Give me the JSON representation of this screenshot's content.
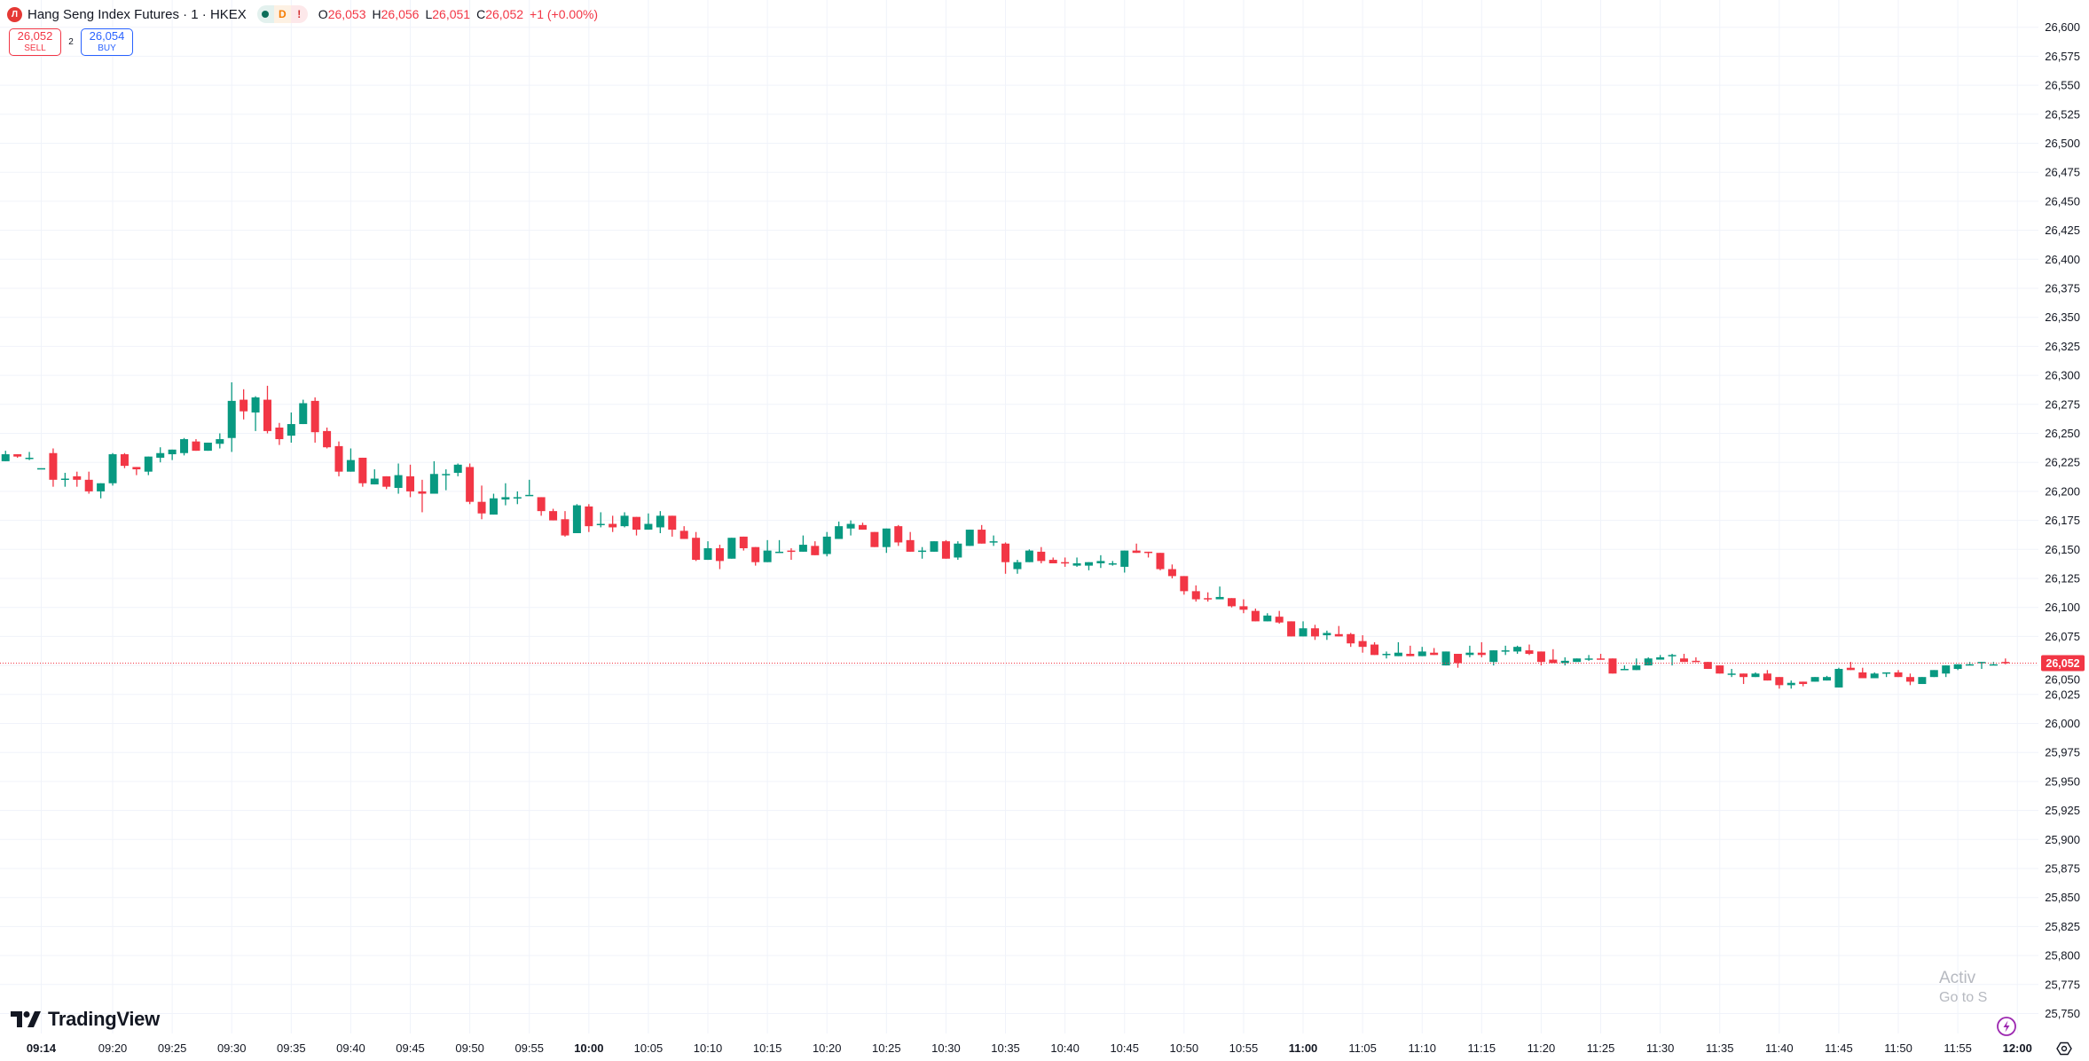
{
  "header": {
    "logo_letter": "Л",
    "title": "Hang Seng Index Futures · 1 · HKEX",
    "status_pills": [
      {
        "icon": "market-open-dot"
      },
      {
        "label": "D"
      },
      {
        "label": "!"
      }
    ],
    "ohlc": {
      "o_label": "O",
      "o": "26,053",
      "h_label": "H",
      "h": "26,056",
      "l_label": "L",
      "l": "26,051",
      "c_label": "C",
      "c": "26,052",
      "change": "+1 (+0.00%)"
    }
  },
  "trade": {
    "sell_price": "26,052",
    "sell_label": "SELL",
    "spread": "2",
    "buy_price": "26,054",
    "buy_label": "BUY"
  },
  "branding": {
    "name": "TradingView"
  },
  "watermark": {
    "line1": "Activ",
    "line2": "Go to S"
  },
  "colors": {
    "up": "#089981",
    "down": "#F23645",
    "grid": "#F0F3FA",
    "lightning": "#9C27B0"
  },
  "chart_data": {
    "type": "candlestick",
    "symbol": "Hang Seng Index Futures",
    "interval": "1",
    "start_time": "09:11",
    "interval_min": 1,
    "ylim": [
      25740,
      26612
    ],
    "grid": true,
    "last_price": 26052,
    "last_price_label": "26,052",
    "y_ticks": [
      "26,600",
      "26,575",
      "26,550",
      "26,525",
      "26,500",
      "26,475",
      "26,450",
      "26,425",
      "26,400",
      "26,375",
      "26,350",
      "26,325",
      "26,300",
      "26,275",
      "26,250",
      "26,225",
      "26,200",
      "26,175",
      "26,150",
      "26,125",
      "26,100",
      "26,075",
      "26,050",
      "26,025",
      "26,000",
      "25,975",
      "25,950",
      "25,925",
      "25,900",
      "25,875",
      "25,850",
      "25,825",
      "25,800",
      "25,775",
      "25,750"
    ],
    "x_ticks": [
      "09:14",
      "09:20",
      "09:25",
      "09:30",
      "09:35",
      "09:40",
      "09:45",
      "09:50",
      "09:55",
      "10:00",
      "10:05",
      "10:10",
      "10:15",
      "10:20",
      "10:25",
      "10:30",
      "10:35",
      "10:40",
      "10:45",
      "10:50",
      "10:55",
      "11:00",
      "11:05",
      "11:10",
      "11:15",
      "11:20",
      "11:25",
      "11:30",
      "11:35",
      "11:40",
      "11:45",
      "11:50",
      "11:55",
      "12:00"
    ],
    "x_ticks_bold": [
      "09:14",
      "10:00",
      "11:00",
      "12:00"
    ],
    "ohlc": [
      [
        26226,
        26235,
        26226,
        26232
      ],
      [
        26232,
        26232,
        26229,
        26230
      ],
      [
        26228,
        26234,
        26227,
        26229
      ],
      [
        26220,
        26220,
        26220,
        26220
      ],
      [
        26233,
        26237,
        26204,
        26210
      ],
      [
        26210,
        26216,
        26204,
        26211
      ],
      [
        26213,
        26217,
        26204,
        26210
      ],
      [
        26210,
        26217,
        26198,
        26200
      ],
      [
        26200,
        26207,
        26194,
        26207
      ],
      [
        26207,
        26233,
        26205,
        26232
      ],
      [
        26232,
        26233,
        26220,
        26222
      ],
      [
        26221,
        26221,
        26214,
        26219
      ],
      [
        26217,
        26230,
        26214,
        26230
      ],
      [
        26229,
        26238,
        26225,
        26233
      ],
      [
        26232,
        26236,
        26227,
        26236
      ],
      [
        26233,
        26246,
        26231,
        26245
      ],
      [
        26243,
        26245,
        26235,
        26235
      ],
      [
        26235,
        26242,
        26235,
        26242
      ],
      [
        26241,
        26250,
        26237,
        26245
      ],
      [
        26246,
        26294,
        26234,
        26278
      ],
      [
        26279,
        26288,
        26262,
        26269
      ],
      [
        26268,
        26282,
        26252,
        26281
      ],
      [
        26279,
        26291,
        26250,
        26252
      ],
      [
        26255,
        26259,
        26240,
        26245
      ],
      [
        26248,
        26268,
        26242,
        26258
      ],
      [
        26258,
        26279,
        26258,
        26276
      ],
      [
        26278,
        26281,
        26242,
        26251
      ],
      [
        26252,
        26255,
        26237,
        26238
      ],
      [
        26239,
        26243,
        26213,
        26217
      ],
      [
        26217,
        26237,
        26217,
        26227
      ],
      [
        26229,
        26229,
        26204,
        26207
      ],
      [
        26206,
        26219,
        26206,
        26211
      ],
      [
        26213,
        26213,
        26202,
        26204
      ],
      [
        26203,
        26224,
        26198,
        26214
      ],
      [
        26213,
        26223,
        26195,
        26200
      ],
      [
        26200,
        26210,
        26182,
        26198
      ],
      [
        26198,
        26226,
        26198,
        26215
      ],
      [
        26214,
        26219,
        26201,
        26215
      ],
      [
        26216,
        26224,
        26213,
        26223
      ],
      [
        26221,
        26224,
        26189,
        26191
      ],
      [
        26191,
        26205,
        26176,
        26181
      ],
      [
        26180,
        26198,
        26180,
        26194
      ],
      [
        26193,
        26207,
        26188,
        26195
      ],
      [
        26194,
        26200,
        26189,
        26195
      ],
      [
        26197,
        26210,
        26197,
        26197
      ],
      [
        26195,
        26195,
        26179,
        26183
      ],
      [
        26183,
        26185,
        26175,
        26175
      ],
      [
        26176,
        26183,
        26161,
        26162
      ],
      [
        26164,
        26189,
        26164,
        26188
      ],
      [
        26187,
        26189,
        26165,
        26170
      ],
      [
        26172,
        26182,
        26169,
        26172
      ],
      [
        26172,
        26179,
        26165,
        26169
      ],
      [
        26170,
        26182,
        26169,
        26179
      ],
      [
        26178,
        26178,
        26162,
        26167
      ],
      [
        26167,
        26181,
        26167,
        26172
      ],
      [
        26169,
        26183,
        26164,
        26179
      ],
      [
        26179,
        26179,
        26161,
        26167
      ],
      [
        26166,
        26170,
        26159,
        26159
      ],
      [
        26160,
        26165,
        26140,
        26141
      ],
      [
        26141,
        26157,
        26141,
        26151
      ],
      [
        26151,
        26154,
        26133,
        26140
      ],
      [
        26142,
        26160,
        26142,
        26160
      ],
      [
        26161,
        26161,
        26149,
        26151
      ],
      [
        26152,
        26152,
        26136,
        26139
      ],
      [
        26139,
        26158,
        26139,
        26149
      ],
      [
        26147,
        26158,
        26147,
        26148
      ],
      [
        26149,
        26151,
        26141,
        26148
      ],
      [
        26148,
        26162,
        26148,
        26154
      ],
      [
        26153,
        26157,
        26145,
        26145
      ],
      [
        26146,
        26165,
        26144,
        26161
      ],
      [
        26159,
        26174,
        26159,
        26170
      ],
      [
        26168,
        26175,
        26162,
        26172
      ],
      [
        26171,
        26173,
        26167,
        26167
      ],
      [
        26165,
        26165,
        26152,
        26152
      ],
      [
        26152,
        26168,
        26147,
        26168
      ],
      [
        26170,
        26171,
        26153,
        26156
      ],
      [
        26158,
        26165,
        26148,
        26148
      ],
      [
        26148,
        26152,
        26142,
        26149
      ],
      [
        26148,
        26157,
        26148,
        26157
      ],
      [
        26157,
        26158,
        26142,
        26142
      ],
      [
        26143,
        26157,
        26141,
        26155
      ],
      [
        26153,
        26167,
        26153,
        26167
      ],
      [
        26167,
        26171,
        26155,
        26155
      ],
      [
        26157,
        26162,
        26153,
        26157
      ],
      [
        26155,
        26156,
        26129,
        26139
      ],
      [
        26133,
        26141,
        26129,
        26139
      ],
      [
        26139,
        26150,
        26139,
        26149
      ],
      [
        26148,
        26152,
        26138,
        26140
      ],
      [
        26141,
        26143,
        26138,
        26138
      ],
      [
        26139,
        26143,
        26135,
        26138
      ],
      [
        26136,
        26143,
        26135,
        26138
      ],
      [
        26136,
        26139,
        26132,
        26139
      ],
      [
        26138,
        26145,
        26134,
        26140
      ],
      [
        26137,
        26140,
        26136,
        26138
      ],
      [
        26135,
        26149,
        26130,
        26149
      ],
      [
        26149,
        26155,
        26147,
        26147
      ],
      [
        26148,
        26148,
        26143,
        26147
      ],
      [
        26147,
        26147,
        26132,
        26133
      ],
      [
        26133,
        26137,
        26125,
        26127
      ],
      [
        26127,
        26127,
        26111,
        26114
      ],
      [
        26114,
        26119,
        26105,
        26107
      ],
      [
        26108,
        26113,
        26105,
        26107
      ],
      [
        26107,
        26118,
        26107,
        26109
      ],
      [
        26108,
        26108,
        26100,
        26101
      ],
      [
        26101,
        26107,
        26095,
        26098
      ],
      [
        26097,
        26099,
        26088,
        26088
      ],
      [
        26088,
        26095,
        26088,
        26093
      ],
      [
        26092,
        26097,
        26086,
        26087
      ],
      [
        26088,
        26088,
        26075,
        26075
      ],
      [
        26075,
        26088,
        26075,
        26082
      ],
      [
        26082,
        26085,
        26072,
        26075
      ],
      [
        26076,
        26080,
        26072,
        26078
      ],
      [
        26077,
        26084,
        26075,
        26075
      ],
      [
        26077,
        26078,
        26066,
        26069
      ],
      [
        26071,
        26076,
        26061,
        26066
      ],
      [
        26068,
        26070,
        26059,
        26059
      ],
      [
        26059,
        26062,
        26056,
        26060
      ],
      [
        26058,
        26070,
        26058,
        26061
      ],
      [
        26060,
        26067,
        26058,
        26058
      ],
      [
        26058,
        26066,
        26058,
        26062
      ],
      [
        26061,
        26065,
        26059,
        26059
      ],
      [
        26050,
        26062,
        26050,
        26062
      ],
      [
        26060,
        26060,
        26048,
        26052
      ],
      [
        26059,
        26067,
        26057,
        26061
      ],
      [
        26061,
        26070,
        26057,
        26059
      ],
      [
        26053,
        26063,
        26050,
        26063
      ],
      [
        26062,
        26067,
        26059,
        26063
      ],
      [
        26062,
        26067,
        26060,
        26066
      ],
      [
        26063,
        26068,
        26059,
        26060
      ],
      [
        26062,
        26062,
        26050,
        26053
      ],
      [
        26055,
        26064,
        26052,
        26052
      ],
      [
        26052,
        26057,
        26050,
        26054
      ],
      [
        26053,
        26056,
        26053,
        26056
      ],
      [
        26055,
        26059,
        26054,
        26056
      ],
      [
        26056,
        26060,
        26055,
        26055
      ],
      [
        26056,
        26056,
        26043,
        26043
      ],
      [
        26046,
        26050,
        26046,
        26047
      ],
      [
        26046,
        26056,
        26046,
        26050
      ],
      [
        26050,
        26057,
        26050,
        26056
      ],
      [
        26055,
        26059,
        26055,
        26057
      ],
      [
        26058,
        26060,
        26050,
        26059
      ],
      [
        26056,
        26060,
        26053,
        26053
      ],
      [
        26054,
        26057,
        26053,
        26053
      ],
      [
        26053,
        26053,
        26047,
        26047
      ],
      [
        26050,
        26050,
        26043,
        26043
      ],
      [
        26042,
        26047,
        26040,
        26043
      ],
      [
        26043,
        26043,
        26034,
        26040
      ],
      [
        26040,
        26044,
        26040,
        26043
      ],
      [
        26043,
        26046,
        26037,
        26037
      ],
      [
        26040,
        26040,
        26030,
        26033
      ],
      [
        26033,
        26037,
        26030,
        26035
      ],
      [
        26036,
        26036,
        26032,
        26034
      ],
      [
        26036,
        26040,
        26036,
        26040
      ],
      [
        26037,
        26041,
        26037,
        26040
      ],
      [
        26031,
        26048,
        26031,
        26047
      ],
      [
        26048,
        26053,
        26046,
        26046
      ],
      [
        26044,
        26048,
        26039,
        26039
      ],
      [
        26039,
        26044,
        26039,
        26043
      ],
      [
        26043,
        26044,
        26040,
        26044
      ],
      [
        26044,
        26046,
        26040,
        26040
      ],
      [
        26040,
        26043,
        26033,
        26036
      ],
      [
        26034,
        26040,
        26034,
        26040
      ],
      [
        26040,
        26046,
        26040,
        26046
      ],
      [
        26043,
        26050,
        26040,
        26050
      ],
      [
        26047,
        26051,
        26046,
        26051
      ],
      [
        26050,
        26053,
        26050,
        26051
      ],
      [
        26052,
        26053,
        26047,
        26053
      ],
      [
        26051,
        26053,
        26051,
        26051
      ],
      [
        26053,
        26056,
        26051,
        26052
      ]
    ]
  }
}
